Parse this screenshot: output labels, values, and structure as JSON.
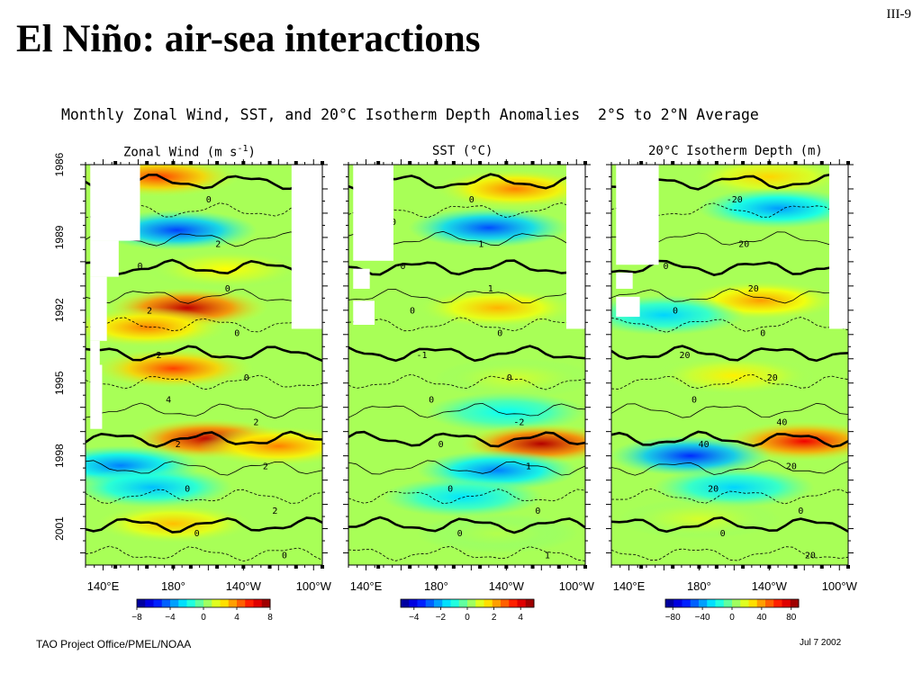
{
  "slide": {
    "title": "El Niño: air-sea interactions",
    "number": "III-9",
    "footer_left": "TAO Project Office/PMEL/NOAA",
    "footer_right": "Jul  7 2002"
  },
  "chart_data": [
    {
      "type": "heatmap",
      "title": "Monthly Zonal Wind, SST, and 20°C Isotherm Depth Anomalies  2°S to 2°N Average",
      "panel_title": "Zonal Wind (m s",
      "panel_title_sup": "-1",
      "panel_title_end": ")",
      "xlabel": "",
      "ylabel": "",
      "x_ticks": [
        "140°E",
        "180°",
        "140°W",
        "100°W"
      ],
      "x_range_lon_east": [
        130,
        265
      ],
      "y_ticks": [
        "1986",
        "1989",
        "1992",
        "1995",
        "1998",
        "2001"
      ],
      "y_range": [
        1986.0,
        2002.5
      ],
      "colorbar": {
        "ticks": [
          -8,
          -4,
          0,
          4,
          8
        ],
        "range": [
          -8,
          8
        ],
        "colormap": "jet"
      },
      "contour_labels": [
        "-2",
        "0",
        "0",
        "2",
        "0",
        "0",
        "2",
        "0",
        "2",
        "0",
        "4",
        "2",
        "2",
        "2",
        "0",
        "2",
        "0",
        "0"
      ],
      "anomalies": [
        {
          "year": 1986.5,
          "lon": 172,
          "value": 5
        },
        {
          "year": 1988.7,
          "lon": 182,
          "value": -5
        },
        {
          "year": 1991.9,
          "lon": 188,
          "value": 7
        },
        {
          "year": 1992.7,
          "lon": 165,
          "value": 4
        },
        {
          "year": 1994.4,
          "lon": 180,
          "value": 5
        },
        {
          "year": 1997.3,
          "lon": 200,
          "value": 7
        },
        {
          "year": 1997.6,
          "lon": 240,
          "value": 4
        },
        {
          "year": 1998.4,
          "lon": 150,
          "value": -4
        },
        {
          "year": 1999.3,
          "lon": 168,
          "value": -3
        },
        {
          "year": 2000.8,
          "lon": 180,
          "value": 3
        },
        {
          "year": 1990.3,
          "lon": 210,
          "value": 2
        }
      ]
    },
    {
      "type": "heatmap",
      "panel_title": "SST (°C)",
      "x_ticks": [
        "140°E",
        "180°",
        "140°W",
        "100°W"
      ],
      "x_range_lon_east": [
        130,
        265
      ],
      "colorbar": {
        "ticks": [
          -4,
          -2,
          0,
          2,
          4
        ],
        "range": [
          -5,
          5
        ],
        "colormap": "jet"
      },
      "contour_labels": [
        "1",
        "0",
        "0",
        "1",
        "0",
        "1",
        "0",
        "0",
        "-1",
        "0",
        "0",
        "-2",
        "0",
        "1",
        "0",
        "0",
        "0",
        "1"
      ],
      "anomalies": [
        {
          "year": 1987.0,
          "lon": 225,
          "value": 2.5
        },
        {
          "year": 1988.6,
          "lon": 210,
          "value": -3
        },
        {
          "year": 1991.9,
          "lon": 215,
          "value": 2
        },
        {
          "year": 1994.8,
          "lon": 225,
          "value": 0.8
        },
        {
          "year": 1996.2,
          "lon": 220,
          "value": -1.2
        },
        {
          "year": 1997.5,
          "lon": 240,
          "value": 4.5
        },
        {
          "year": 1998.6,
          "lon": 215,
          "value": -2.5
        },
        {
          "year": 1999.7,
          "lon": 195,
          "value": -1.5
        },
        {
          "year": 2001.2,
          "lon": 215,
          "value": 0.5
        }
      ]
    },
    {
      "type": "heatmap",
      "panel_title": "20°C Isotherm Depth (m)",
      "x_ticks": [
        "140°E",
        "180°",
        "140°W",
        "100°W"
      ],
      "x_range_lon_east": [
        130,
        265
      ],
      "colorbar": {
        "ticks": [
          -80,
          -40,
          0,
          40,
          80
        ],
        "range": [
          -90,
          90
        ],
        "colormap": "jet"
      },
      "contour_labels": [
        "20",
        "-20",
        "0",
        "20",
        "0",
        "20",
        "0",
        "0",
        "20",
        "20",
        "0",
        "40",
        "40",
        "20",
        "20",
        "0",
        "0",
        "20"
      ],
      "anomalies": [
        {
          "year": 1986.5,
          "lon": 220,
          "value": 30
        },
        {
          "year": 1987.8,
          "lon": 225,
          "value": -40
        },
        {
          "year": 1991.6,
          "lon": 215,
          "value": 40
        },
        {
          "year": 1992.2,
          "lon": 160,
          "value": -30
        },
        {
          "year": 1994.7,
          "lon": 200,
          "value": 25
        },
        {
          "year": 1997.4,
          "lon": 240,
          "value": 70
        },
        {
          "year": 1998.0,
          "lon": 175,
          "value": -60
        },
        {
          "year": 1999.3,
          "lon": 200,
          "value": -30
        },
        {
          "year": 2000.6,
          "lon": 180,
          "value": 15
        }
      ]
    }
  ]
}
